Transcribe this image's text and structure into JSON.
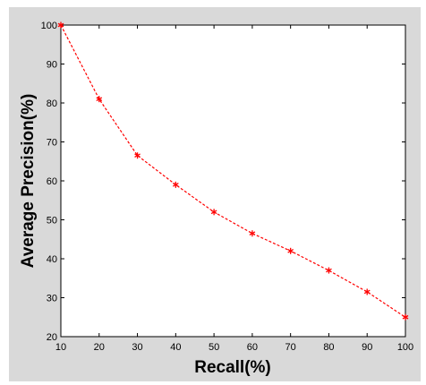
{
  "chart_data": {
    "type": "line",
    "title": "",
    "xlabel": "Recall(%)",
    "ylabel": "Average Precision(%)",
    "xlim": [
      10,
      100
    ],
    "ylim": [
      20,
      100
    ],
    "x_ticks": [
      10,
      20,
      30,
      40,
      50,
      60,
      70,
      80,
      90,
      100
    ],
    "y_ticks": [
      20,
      30,
      40,
      50,
      60,
      70,
      80,
      90,
      100
    ],
    "grid": false,
    "series": [
      {
        "x": [
          10,
          20,
          30,
          40,
          50,
          60,
          70,
          80,
          90,
          100
        ],
        "values": [
          100,
          81,
          66.5,
          59,
          52,
          46.5,
          42,
          37,
          31.5,
          25
        ],
        "color": "#ff0000",
        "line_style": "dashed",
        "marker": "asterisk"
      }
    ]
  }
}
